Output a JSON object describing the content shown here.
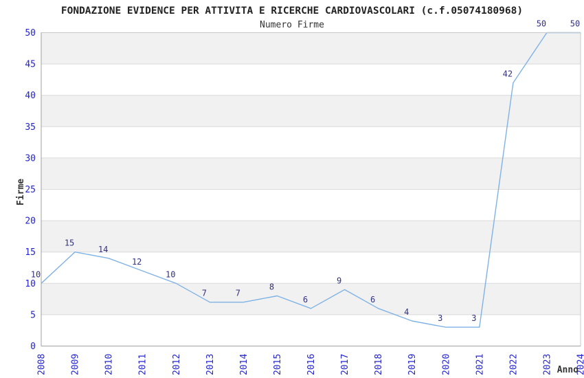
{
  "chart_data": {
    "type": "line",
    "title": "FONDAZIONE EVIDENCE PER ATTIVITA E RICERCHE CARDIOVASCOLARI (c.f.05074180968)",
    "subtitle": "Numero Firme",
    "xlabel": "Anno",
    "ylabel": "Firme",
    "x": [
      2008,
      2009,
      2010,
      2011,
      2012,
      2013,
      2014,
      2015,
      2016,
      2017,
      2018,
      2019,
      2020,
      2021,
      2022,
      2023,
      2024
    ],
    "values": [
      10,
      15,
      14,
      12,
      10,
      7,
      7,
      8,
      6,
      9,
      6,
      4,
      3,
      3,
      42,
      50,
      50
    ],
    "ylim": [
      0,
      50
    ],
    "ytick_step": 5,
    "point_labels_shown": true,
    "legend": "none",
    "grid": "horizontal",
    "banding": "alternating light-gray horizontal bands every 5 units (5-10, 15-20, 25-30, 35-40, 45-50 shaded)",
    "colors": {
      "line": "#7fb2e5",
      "axis_tick_label": "#2323cf",
      "point_label": "#31317d",
      "band_fill": "#f1f1f1",
      "frame": "#c8c8c8",
      "axis_line": "#a0a0a0",
      "grid_line": "#dadada",
      "title_text": "#222222",
      "subtitle_text": "#333333",
      "axis_title_text": "#333333",
      "background": "#ffffff"
    }
  }
}
